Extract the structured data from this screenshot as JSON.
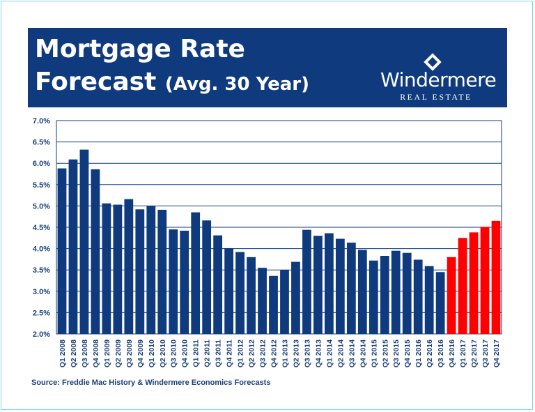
{
  "header": {
    "title_line1": "Mortgage Rate",
    "title_line2": "Forecast",
    "title_sub": "(Avg. 30 Year)"
  },
  "logo": {
    "name": "Windermere",
    "tagline": "REAL ESTATE"
  },
  "source": "Source: Freddie Mac History & Windermere Economics Forecasts",
  "colors": {
    "banner": "#0f3b7e",
    "history_bar": "#0f3b7e",
    "forecast_bar": "#ff0000",
    "grid": "#0f3b7e"
  },
  "chart_data": {
    "type": "bar",
    "title": "Mortgage Rate Forecast (Avg. 30 Year)",
    "xlabel": "",
    "ylabel": "",
    "ylim": [
      2.0,
      7.0
    ],
    "yticks": [
      "2.0%",
      "2.5%",
      "3.0%",
      "3.5%",
      "4.0%",
      "4.5%",
      "5.0%",
      "5.5%",
      "6.0%",
      "6.5%",
      "7.0%"
    ],
    "grid": true,
    "categories": [
      "Q1 2008",
      "Q2 2008",
      "Q3 2008",
      "Q4 2008",
      "Q1 2009",
      "Q2 2009",
      "Q3 2009",
      "Q4 2009",
      "Q1 2010",
      "Q2 2010",
      "Q3 2010",
      "Q4 2010",
      "Q1 2011",
      "Q2 2011",
      "Q3 2011",
      "Q4 2011",
      "Q1 2012",
      "Q2 2012",
      "Q3 2012",
      "Q4 2012",
      "Q1 2013",
      "Q2 2013",
      "Q3 2013",
      "Q4 2013",
      "Q1 2014",
      "Q2 2014",
      "Q3 2014",
      "Q4 2014",
      "Q1 2015",
      "Q2 2015",
      "Q3 2015",
      "Q4 2015",
      "Q1 2016",
      "Q2 2016",
      "Q3 2016",
      "Q4 2016",
      "Q1 2017",
      "Q2 2017",
      "Q3 2017",
      "Q4 2017"
    ],
    "series": [
      {
        "name": "Freddie Mac History",
        "values": [
          5.88,
          6.09,
          6.32,
          5.86,
          5.06,
          5.03,
          5.16,
          4.92,
          5.0,
          4.91,
          4.45,
          4.42,
          4.85,
          4.66,
          4.31,
          4.01,
          3.92,
          3.8,
          3.55,
          3.36,
          3.5,
          3.69,
          4.44,
          4.3,
          4.36,
          4.23,
          4.14,
          3.97,
          3.72,
          3.83,
          3.95,
          3.9,
          3.74,
          3.59,
          3.45,
          null,
          null,
          null,
          null,
          null
        ]
      },
      {
        "name": "Windermere Economics Forecasts",
        "values": [
          null,
          null,
          null,
          null,
          null,
          null,
          null,
          null,
          null,
          null,
          null,
          null,
          null,
          null,
          null,
          null,
          null,
          null,
          null,
          null,
          null,
          null,
          null,
          null,
          null,
          null,
          null,
          null,
          null,
          null,
          null,
          null,
          null,
          null,
          null,
          3.8,
          4.25,
          4.38,
          4.51,
          4.65
        ]
      }
    ]
  }
}
